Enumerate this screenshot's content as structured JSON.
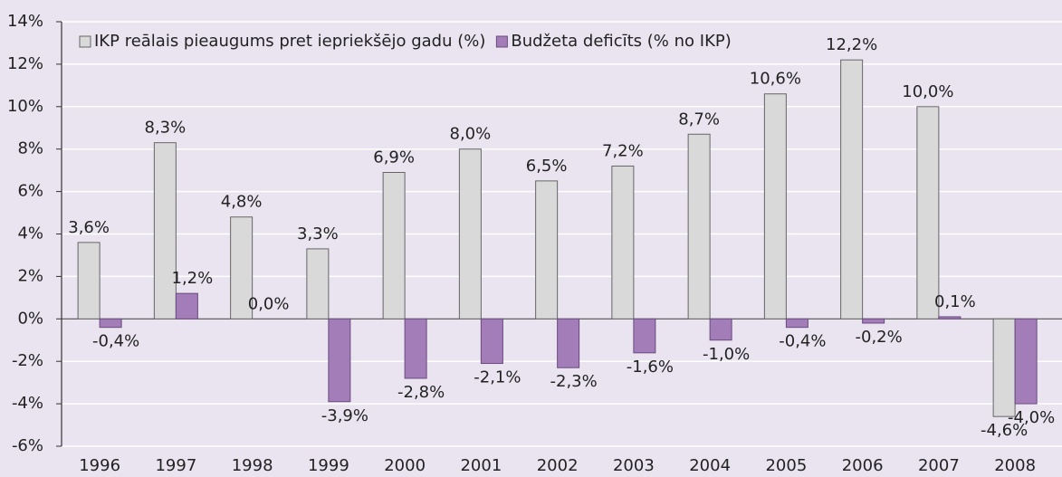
{
  "chart_data": {
    "type": "bar",
    "categories": [
      "1996",
      "1997",
      "1998",
      "1999",
      "2000",
      "2001",
      "2002",
      "2003",
      "2004",
      "2005",
      "2006",
      "2007",
      "2008"
    ],
    "series": [
      {
        "name": "IKP reālais pieaugums pret iepriekšējo gadu (%)",
        "color": "#d9d9d9",
        "values": [
          3.6,
          8.3,
          4.8,
          3.3,
          6.9,
          8.0,
          6.5,
          7.2,
          8.7,
          10.6,
          12.2,
          10.0,
          -4.6
        ],
        "value_labels": [
          "3,6%",
          "8,3%",
          "4,8%",
          "3,3%",
          "6,9%",
          "8,0%",
          "6,5%",
          "7,2%",
          "8,7%",
          "10,6%",
          "12,2%",
          "10,0%",
          "-4,6%"
        ]
      },
      {
        "name": "Budžeta deficīts (% no IKP)",
        "color": "#a27db8",
        "values": [
          -0.4,
          1.2,
          0.0,
          -3.9,
          -2.8,
          -2.1,
          -2.3,
          -1.6,
          -1.0,
          -0.4,
          -0.2,
          0.1,
          -4.0
        ],
        "value_labels": [
          "-0,4%",
          "1,2%",
          "0,0%",
          "-3,9%",
          "-2,8%",
          "-2,1%",
          "-2,3%",
          "-1,6%",
          "-1,0%",
          "-0,4%",
          "-0,2%",
          "0,1%",
          "-4,0%"
        ]
      }
    ],
    "ylim": [
      -6,
      14
    ],
    "yticks": [
      {
        "value": -6,
        "label": "-6%"
      },
      {
        "value": -4,
        "label": "-4%"
      },
      {
        "value": -2,
        "label": "-2%"
      },
      {
        "value": 0,
        "label": "0%"
      },
      {
        "value": 2,
        "label": "2%"
      },
      {
        "value": 4,
        "label": "4%"
      },
      {
        "value": 6,
        "label": "6%"
      },
      {
        "value": 8,
        "label": "8%"
      },
      {
        "value": 10,
        "label": "10%"
      },
      {
        "value": 12,
        "label": "12%"
      },
      {
        "value": 14,
        "label": "14%"
      }
    ],
    "grid": true,
    "legend": "top-left"
  }
}
